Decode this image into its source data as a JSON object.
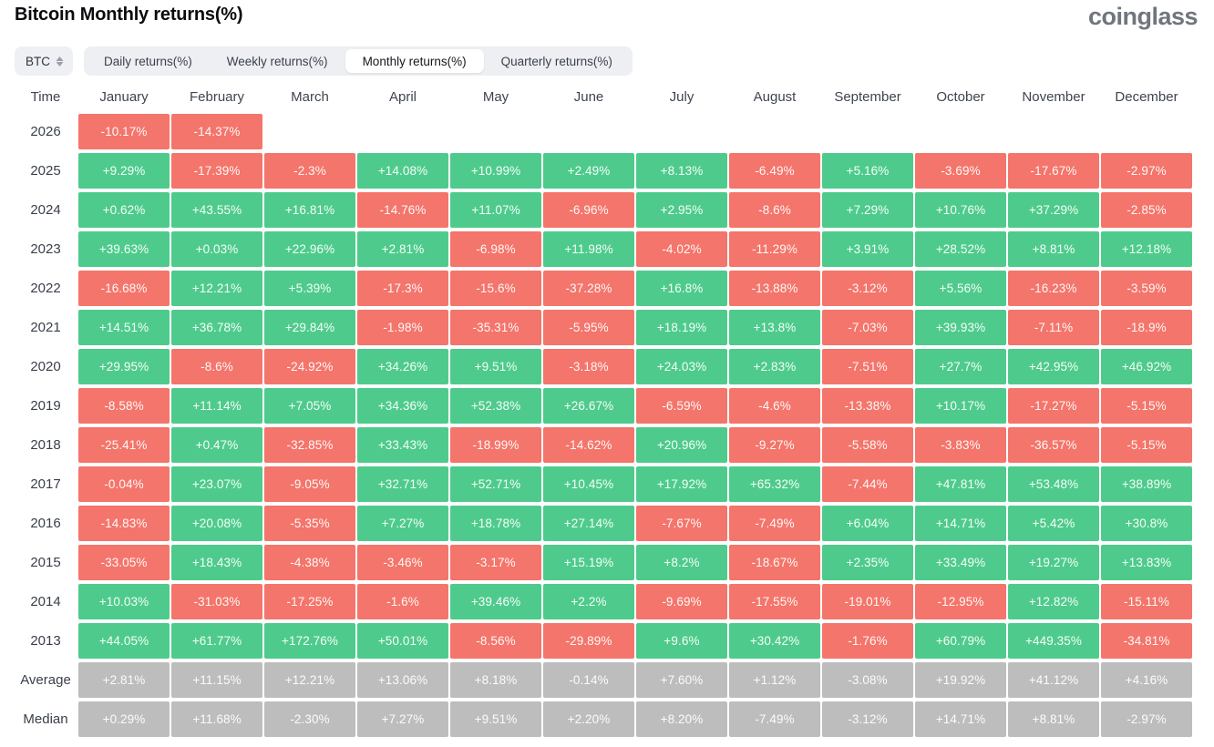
{
  "title": "Bitcoin Monthly returns(%)",
  "logo_text": "coinglass",
  "coin_selector": {
    "value": "BTC",
    "icon": "updown-chevron-icon"
  },
  "tabs": [
    {
      "label": "Daily returns(%)",
      "active": false
    },
    {
      "label": "Weekly returns(%)",
      "active": false
    },
    {
      "label": "Monthly returns(%)",
      "active": true
    },
    {
      "label": "Quarterly returns(%)",
      "active": false
    }
  ],
  "colors": {
    "positive": "#4ECB8C",
    "negative": "#F4756B",
    "neutral": "#BDBDBD"
  },
  "chart_data": {
    "type": "heatmap",
    "title": "Bitcoin Monthly returns(%)",
    "row_header": "Time",
    "columns": [
      "January",
      "February",
      "March",
      "April",
      "May",
      "June",
      "July",
      "August",
      "September",
      "October",
      "November",
      "December"
    ],
    "rows": [
      {
        "label": "2026",
        "neutral": false,
        "values": [
          "-10.17%",
          "-14.37%",
          "",
          "",
          "",
          "",
          "",
          "",
          "",
          "",
          "",
          ""
        ]
      },
      {
        "label": "2025",
        "neutral": false,
        "values": [
          "+9.29%",
          "-17.39%",
          "-2.3%",
          "+14.08%",
          "+10.99%",
          "+2.49%",
          "+8.13%",
          "-6.49%",
          "+5.16%",
          "-3.69%",
          "-17.67%",
          "-2.97%"
        ]
      },
      {
        "label": "2024",
        "neutral": false,
        "values": [
          "+0.62%",
          "+43.55%",
          "+16.81%",
          "-14.76%",
          "+11.07%",
          "-6.96%",
          "+2.95%",
          "-8.6%",
          "+7.29%",
          "+10.76%",
          "+37.29%",
          "-2.85%"
        ]
      },
      {
        "label": "2023",
        "neutral": false,
        "values": [
          "+39.63%",
          "+0.03%",
          "+22.96%",
          "+2.81%",
          "-6.98%",
          "+11.98%",
          "-4.02%",
          "-11.29%",
          "+3.91%",
          "+28.52%",
          "+8.81%",
          "+12.18%"
        ]
      },
      {
        "label": "2022",
        "neutral": false,
        "values": [
          "-16.68%",
          "+12.21%",
          "+5.39%",
          "-17.3%",
          "-15.6%",
          "-37.28%",
          "+16.8%",
          "-13.88%",
          "-3.12%",
          "+5.56%",
          "-16.23%",
          "-3.59%"
        ]
      },
      {
        "label": "2021",
        "neutral": false,
        "values": [
          "+14.51%",
          "+36.78%",
          "+29.84%",
          "-1.98%",
          "-35.31%",
          "-5.95%",
          "+18.19%",
          "+13.8%",
          "-7.03%",
          "+39.93%",
          "-7.11%",
          "-18.9%"
        ]
      },
      {
        "label": "2020",
        "neutral": false,
        "values": [
          "+29.95%",
          "-8.6%",
          "-24.92%",
          "+34.26%",
          "+9.51%",
          "-3.18%",
          "+24.03%",
          "+2.83%",
          "-7.51%",
          "+27.7%",
          "+42.95%",
          "+46.92%"
        ]
      },
      {
        "label": "2019",
        "neutral": false,
        "values": [
          "-8.58%",
          "+11.14%",
          "+7.05%",
          "+34.36%",
          "+52.38%",
          "+26.67%",
          "-6.59%",
          "-4.6%",
          "-13.38%",
          "+10.17%",
          "-17.27%",
          "-5.15%"
        ]
      },
      {
        "label": "2018",
        "neutral": false,
        "values": [
          "-25.41%",
          "+0.47%",
          "-32.85%",
          "+33.43%",
          "-18.99%",
          "-14.62%",
          "+20.96%",
          "-9.27%",
          "-5.58%",
          "-3.83%",
          "-36.57%",
          "-5.15%"
        ]
      },
      {
        "label": "2017",
        "neutral": false,
        "values": [
          "-0.04%",
          "+23.07%",
          "-9.05%",
          "+32.71%",
          "+52.71%",
          "+10.45%",
          "+17.92%",
          "+65.32%",
          "-7.44%",
          "+47.81%",
          "+53.48%",
          "+38.89%"
        ]
      },
      {
        "label": "2016",
        "neutral": false,
        "values": [
          "-14.83%",
          "+20.08%",
          "-5.35%",
          "+7.27%",
          "+18.78%",
          "+27.14%",
          "-7.67%",
          "-7.49%",
          "+6.04%",
          "+14.71%",
          "+5.42%",
          "+30.8%"
        ]
      },
      {
        "label": "2015",
        "neutral": false,
        "values": [
          "-33.05%",
          "+18.43%",
          "-4.38%",
          "-3.46%",
          "-3.17%",
          "+15.19%",
          "+8.2%",
          "-18.67%",
          "+2.35%",
          "+33.49%",
          "+19.27%",
          "+13.83%"
        ]
      },
      {
        "label": "2014",
        "neutral": false,
        "values": [
          "+10.03%",
          "-31.03%",
          "-17.25%",
          "-1.6%",
          "+39.46%",
          "+2.2%",
          "-9.69%",
          "-17.55%",
          "-19.01%",
          "-12.95%",
          "+12.82%",
          "-15.11%"
        ]
      },
      {
        "label": "2013",
        "neutral": false,
        "values": [
          "+44.05%",
          "+61.77%",
          "+172.76%",
          "+50.01%",
          "-8.56%",
          "-29.89%",
          "+9.6%",
          "+30.42%",
          "-1.76%",
          "+60.79%",
          "+449.35%",
          "-34.81%"
        ]
      },
      {
        "label": "Average",
        "neutral": true,
        "values": [
          "+2.81%",
          "+11.15%",
          "+12.21%",
          "+13.06%",
          "+8.18%",
          "-0.14%",
          "+7.60%",
          "+1.12%",
          "-3.08%",
          "+19.92%",
          "+41.12%",
          "+4.16%"
        ]
      },
      {
        "label": "Median",
        "neutral": true,
        "values": [
          "+0.29%",
          "+11.68%",
          "-2.30%",
          "+7.27%",
          "+9.51%",
          "+2.20%",
          "+8.20%",
          "-7.49%",
          "-3.12%",
          "+14.71%",
          "+8.81%",
          "-2.97%"
        ]
      }
    ]
  }
}
